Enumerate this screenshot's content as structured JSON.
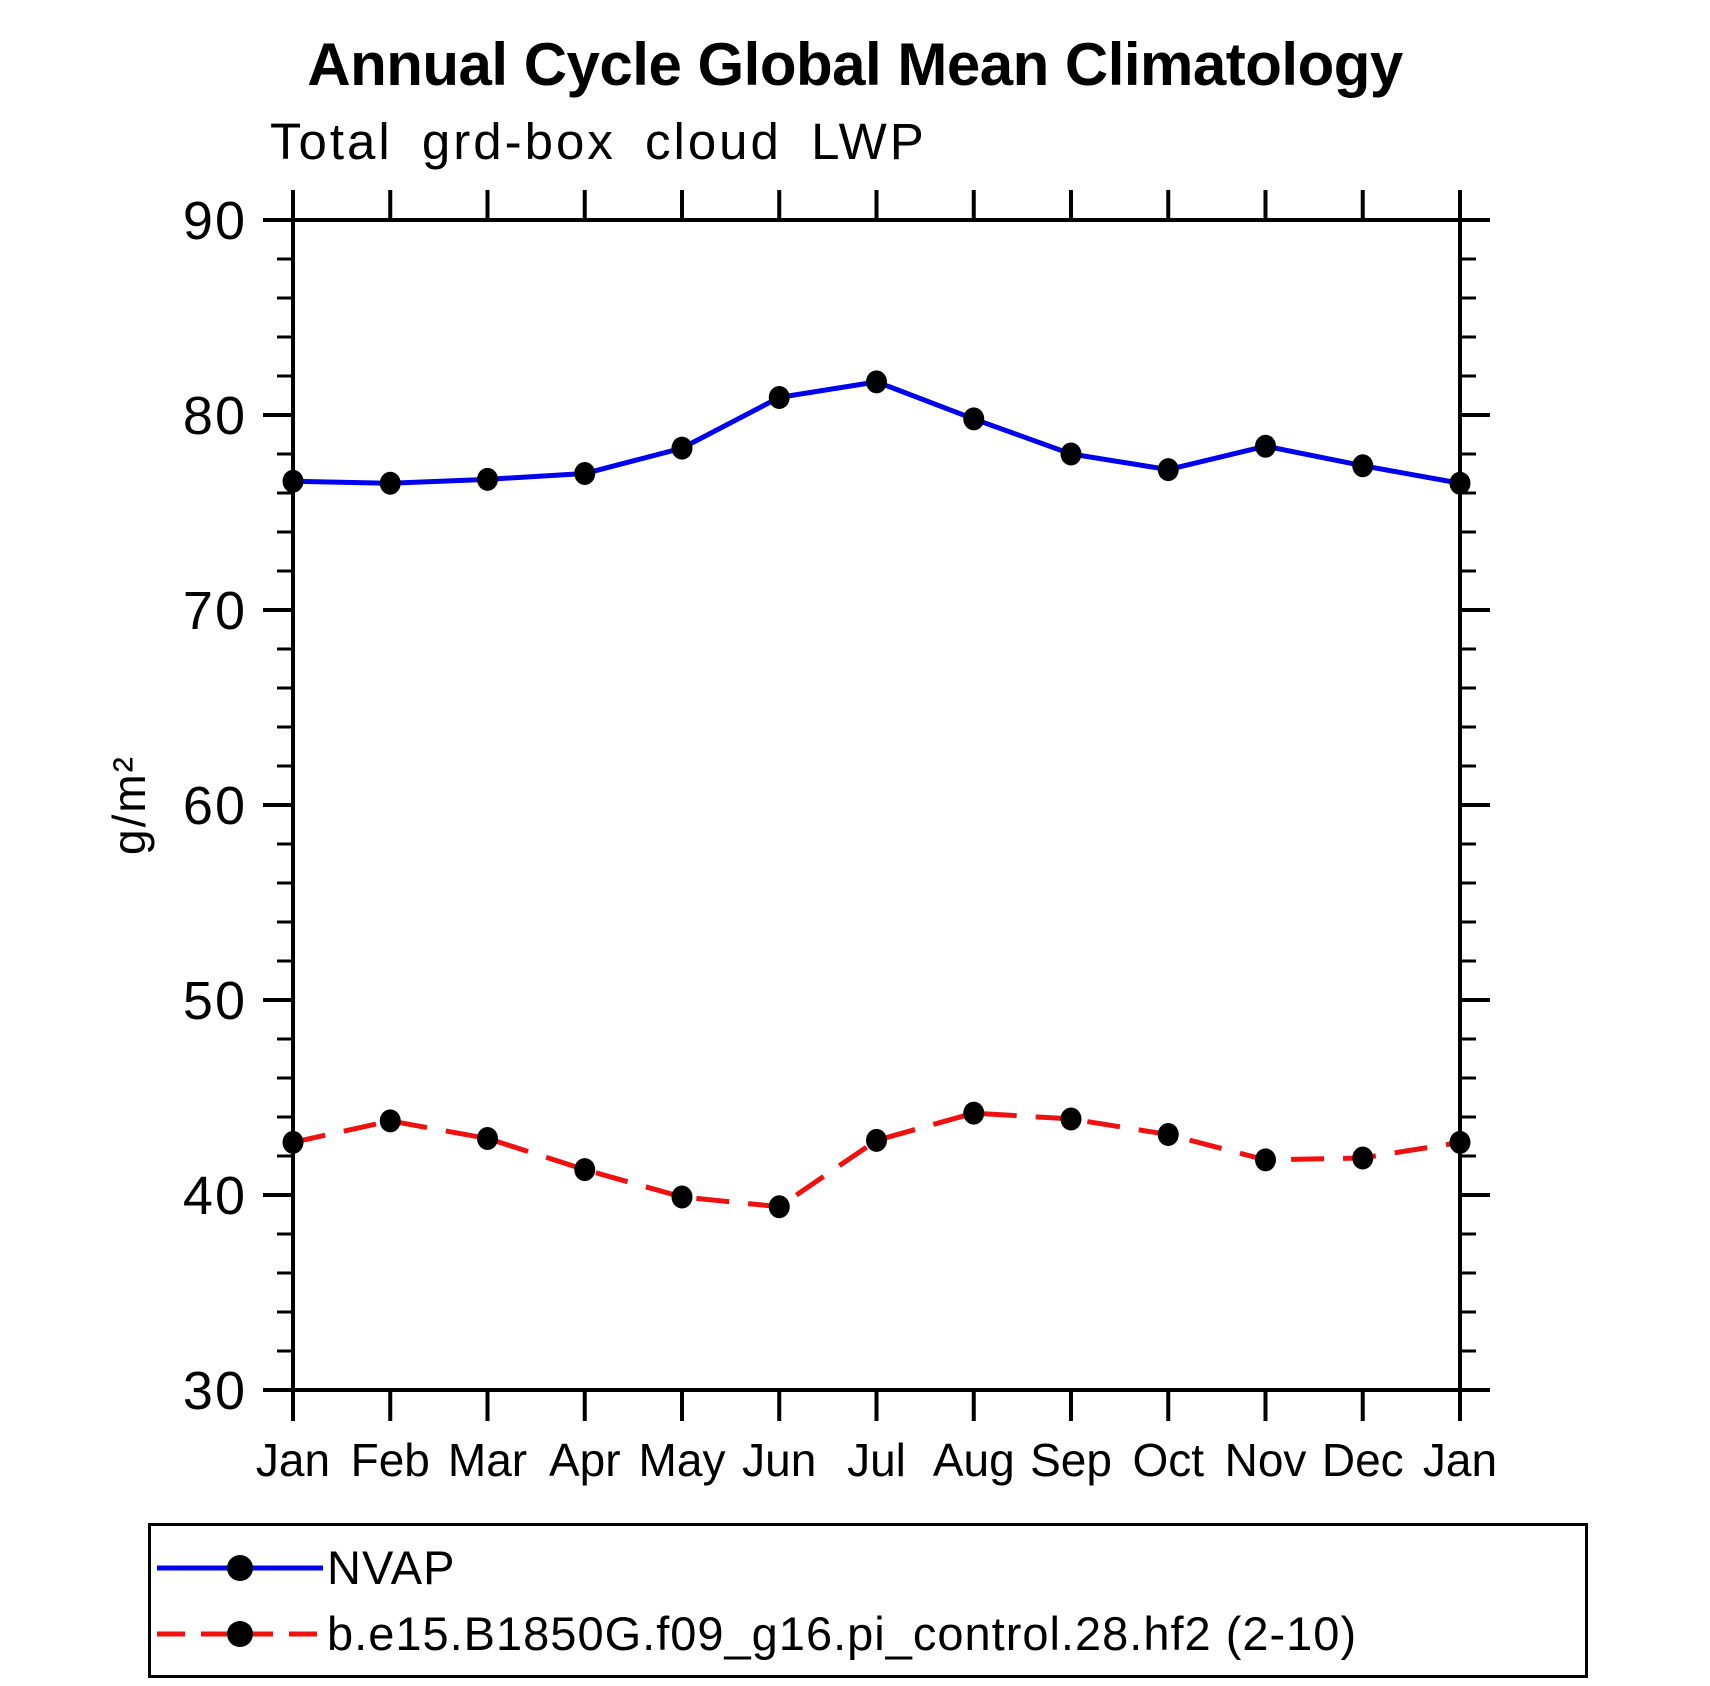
{
  "page": {
    "background_color": "#FFFFFF"
  },
  "chart_data": {
    "type": "line",
    "title": "Annual Cycle Global Mean Climatology",
    "subtitle": "Total grd-box cloud LWP",
    "ylabel": "g/m²",
    "xlabel": "",
    "ylim": [
      30,
      90
    ],
    "y_major_ticks": [
      90,
      80,
      70,
      60,
      50,
      40,
      30
    ],
    "y_minor_step": 2,
    "categories": [
      "Jan",
      "Feb",
      "Mar",
      "Apr",
      "May",
      "Jun",
      "Jul",
      "Aug",
      "Sep",
      "Oct",
      "Nov",
      "Dec",
      "Jan"
    ],
    "grid": false,
    "legend_position": "bottom-left-box",
    "axis_color": "#000000",
    "series": [
      {
        "name": "NVAP",
        "color": "#0000F0",
        "line_style": "solid",
        "marker": "filled-circle",
        "marker_color": "#000000",
        "values": [
          76.6,
          76.5,
          76.7,
          77.0,
          78.3,
          80.9,
          81.7,
          79.8,
          78.0,
          77.2,
          78.4,
          77.4,
          76.5
        ]
      },
      {
        "name": "b.e15.B1850G.f09_g16.pi_control.28.hf2 (2-10)",
        "color": "#F01010",
        "line_style": "dashed",
        "marker": "filled-circle",
        "marker_color": "#000000",
        "values": [
          42.7,
          43.8,
          42.9,
          41.3,
          39.9,
          39.4,
          42.8,
          44.2,
          43.9,
          43.1,
          41.8,
          41.9,
          42.7
        ]
      }
    ]
  }
}
